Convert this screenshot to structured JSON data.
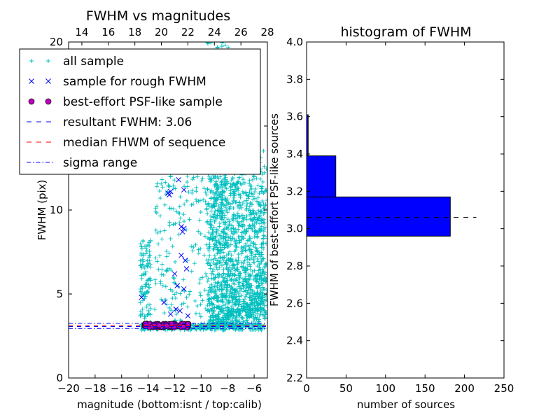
{
  "chart_data": [
    {
      "type": "scatter",
      "title": "FWHM vs magnitudes",
      "xlabel": "magnitude (bottom:isnt / top:calib)",
      "ylabel": "FWHM (pix)",
      "xlim": [
        -20,
        -5
      ],
      "ylim": [
        0,
        20
      ],
      "xticks": [
        -20,
        -18,
        -16,
        -14,
        -12,
        -10,
        -8,
        -6
      ],
      "xtick_labels": [
        "−20",
        "−18",
        "−16",
        "−14",
        "−12",
        "−10",
        "−8",
        "−6"
      ],
      "yticks": [
        0,
        5,
        10,
        15,
        20
      ],
      "ytick_labels": [
        "0",
        "5",
        "10",
        "15",
        "20"
      ],
      "top_axis": {
        "lim": [
          13,
          28
        ],
        "ticks": [
          14,
          16,
          18,
          20,
          22,
          24,
          26,
          28
        ],
        "tick_labels": [
          "14",
          "16",
          "18",
          "20",
          "22",
          "24",
          "26",
          "28"
        ]
      },
      "grid": false,
      "legend_position": "top-left",
      "series": [
        {
          "name": "all sample",
          "marker": "+",
          "color": "#00bfbf"
        },
        {
          "name": "sample for rough FWHM",
          "marker": "x",
          "color": "#0000ff",
          "points": [
            [
              -12.5,
              11.0
            ],
            [
              -12.3,
              11.1
            ],
            [
              -12.4,
              10.9
            ],
            [
              -11.7,
              11.8
            ],
            [
              -11.3,
              11.2
            ],
            [
              -11.5,
              9.0
            ],
            [
              -11.4,
              8.7
            ],
            [
              -11.3,
              8.9
            ],
            [
              -11.5,
              7.3
            ],
            [
              -11.2,
              7.0
            ],
            [
              -12.0,
              6.2
            ],
            [
              -11.8,
              5.5
            ],
            [
              -11.3,
              5.3
            ],
            [
              -14.5,
              4.8
            ],
            [
              -11.9,
              4.1
            ],
            [
              -11.6,
              4.0
            ],
            [
              -12.3,
              3.8
            ],
            [
              -11.0,
              3.7
            ],
            [
              -12.8,
              4.5
            ],
            [
              -11.1,
              6.5
            ]
          ]
        },
        {
          "name": "best-effort PSF-like sample",
          "marker": "o",
          "color": "#bf00bf"
        },
        {
          "name": "resultant FWHM: 3.06",
          "style": "dashed",
          "color": "#0000ff",
          "y": 3.06
        },
        {
          "name": "median FHWM of sequence",
          "style": "dashed",
          "color": "#ff0000",
          "y": 3.12
        },
        {
          "name": "sigma range",
          "style": "dashdot",
          "color": "#0000ff",
          "y_values": [
            2.95,
            3.25
          ]
        }
      ]
    },
    {
      "type": "bar",
      "orientation": "horizontal",
      "title": "histogram of FWHM",
      "xlabel": "number of sources",
      "ylabel": "FWHM of best-effort PSF-like sources",
      "xlim": [
        0,
        250
      ],
      "ylim": [
        2.2,
        4.0
      ],
      "xticks": [
        0,
        50,
        100,
        150,
        200,
        250
      ],
      "xtick_labels": [
        "0",
        "50",
        "100",
        "150",
        "200",
        "250"
      ],
      "yticks": [
        2.2,
        2.4,
        2.6,
        2.8,
        3.0,
        3.2,
        3.4,
        3.6,
        3.8,
        4.0
      ],
      "ytick_labels": [
        "2.2",
        "2.4",
        "2.6",
        "2.8",
        "3.0",
        "3.2",
        "3.4",
        "3.6",
        "3.8",
        "4.0"
      ],
      "bins": [
        {
          "from": 2.96,
          "to": 3.17,
          "count": 182
        },
        {
          "from": 3.17,
          "to": 3.39,
          "count": 37
        },
        {
          "from": 3.39,
          "to": 3.61,
          "count": 2
        }
      ],
      "bar_color": "#0000ff",
      "reference_line": {
        "y": 3.06,
        "style": "dashed",
        "color": "#000000",
        "x_range": [
          0,
          215
        ]
      }
    }
  ]
}
